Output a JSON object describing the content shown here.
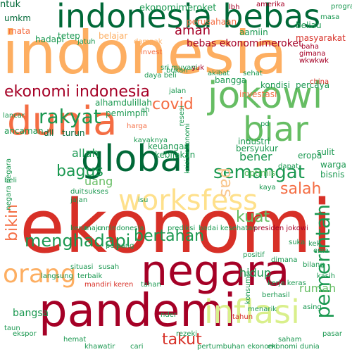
{
  "cloud": {
    "words": {
      "indonesia": "indonesia",
      "ekonomi": "ekonomi",
      "negara": "negara",
      "pandemi": "pandemi",
      "indonesia_bebas": "indonesia bebas",
      "jokowi": "jokowi",
      "dunia": "dunia",
      "global": "global",
      "biar": "biar",
      "inflasi": "inflasi",
      "orang": "orang",
      "worksfess": "worksfess",
      "semangat": "semangat",
      "pemerintah": "pemerintah",
      "ekonomi_indonesia": "ekonomi indonesia",
      "rakyat": "rakyat",
      "menghadapi": "menghadapi",
      "bertahan": "bertahan",
      "kuat": "kuat",
      "takut": "takut",
      "aman": "aman",
      "bagus": "bagus",
      "bebas_ekonomimeroket": "bebas ekonomimeroket",
      "salah": "salah",
      "bikin": "bikin",
      "covid": "covid",
      "pas": "pas",
      "uang": "uang",
      "allah": "allah",
      "hidup": "hidup",
      "rumah": "rumah",
      "bangsa": "bangsa",
      "bener": "bener",
      "ekonomimeroket": "ekonomimeroket",
      "ntuk": "ntuk"
    },
    "small": {
      "umkm": "umkm",
      "tetep": "tetep",
      "belajar": "belajar",
      "beliau": "beliau",
      "masyarakat": "masyarakat",
      "amerika": "amerika",
      "lbh": "lbh",
      "mata": "mata",
      "hadapi": "hadapi",
      "perusahaan": "perusahaan",
      "aamiin": "aamiin",
      "baha": "baha",
      "gimana": "gimana",
      "wkwkwk": "wkwkwk",
      "jatuh": "jatuh",
      "dampak": "dampak",
      "invest": "invest",
      "tenang": "tenang",
      "harga": "harga",
      "keuangan": "keuangan",
      "investasi": "investasi",
      "percaya": "percaya",
      "kondisi": "kondisi",
      "alhamdulillah": "alhamdulillah",
      "pemimpin": "pemimpin",
      "lancar": "lancar",
      "ancaman": "ancaman",
      "dll": "dll",
      "turun": "turun",
      "sukses": "sukses",
      "tetap": "tetap",
      "kebijakan": "kebijakan",
      "industri": "industri",
      "bersyukur": "bersyukur",
      "optimis": "optimis",
      "bangga": "bangga",
      "jajan": "jajan",
      "duit": "duit",
      "isu": "isu",
      "kena": "kena",
      "maju": "maju",
      "cnnindonesia": "cnnindonesia",
      "prediksi": "prediksi",
      "badai_kesehatan": "badai kesehatan",
      "presiden_jokowi": "presiden jokowi",
      "positif": "positif",
      "situasi": "situasi",
      "langsung": "langsung",
      "terbaik": "terbaik",
      "susah": "susah",
      "mandiri_keren": "mandiri keren",
      "kerja_keras": "kerja keras",
      "bilang": "bilang",
      "berhasil": "berhasil",
      "kasih": "kasih",
      "pasar": "pasar",
      "ekonomi_dunia": "ekonomi dunia",
      "cari": "cari",
      "hemat": "hemat",
      "khawatir": "khawatir",
      "pertumbuhan_ekonomi": "pertumbuhan ekonomi",
      "ekspor": "ekspor",
      "rezeki": "rezeki",
      "bisnis": "bisnis",
      "eropa": "eropa",
      "warga": "warga",
      "china": "china",
      "sulit": "sulit",
      "sehat": "sehat",
      "akibat": "akibat",
      "resesi": "resesi",
      "jalan": "jalan",
      "yuk": "yuk",
      "daya_beli": "daya beli",
      "krisis_ekonomi": "krisis ekonomi",
      "program": "program",
      "masa": "masa",
      "dimana": "dimana",
      "negara_negara": "negara negara",
      "ema": "ema",
      "ah": "ah",
      "suka": "suka",
      "kek": "kek",
      "peluang": "peluang",
      "dapat": "dapat",
      "kaya": "kaya",
      "lihat": "lihat",
      "tahan": "tahan",
      "asing": "asing",
      "bank": "bank",
      "lho": "lho",
      "nder": "nder",
      "beli": "beli",
      "ekonomi_indonesia_2": "ekonomi indonesia",
      "kayaknya": "kayaknya",
      "sama": "sama",
      "mending": "mending",
      "nya": "nya",
      "pd": "pd",
      "taun": "taun",
      "bukan": "bukan",
      "sri_muyani": "sri muyani",
      "konsumsi": "konsumsi",
      "menarik": "menarik",
      "tahun": "tahun",
      "saham": "saham"
    }
  },
  "colors": {
    "dark_red": "#a50026",
    "red": "#d73027",
    "orange": "#f46d43",
    "light_orange": "#fdae61",
    "yellow": "#fee08b",
    "light_green": "#d9ef8b",
    "green": "#66bd63",
    "dark_green": "#006837"
  }
}
